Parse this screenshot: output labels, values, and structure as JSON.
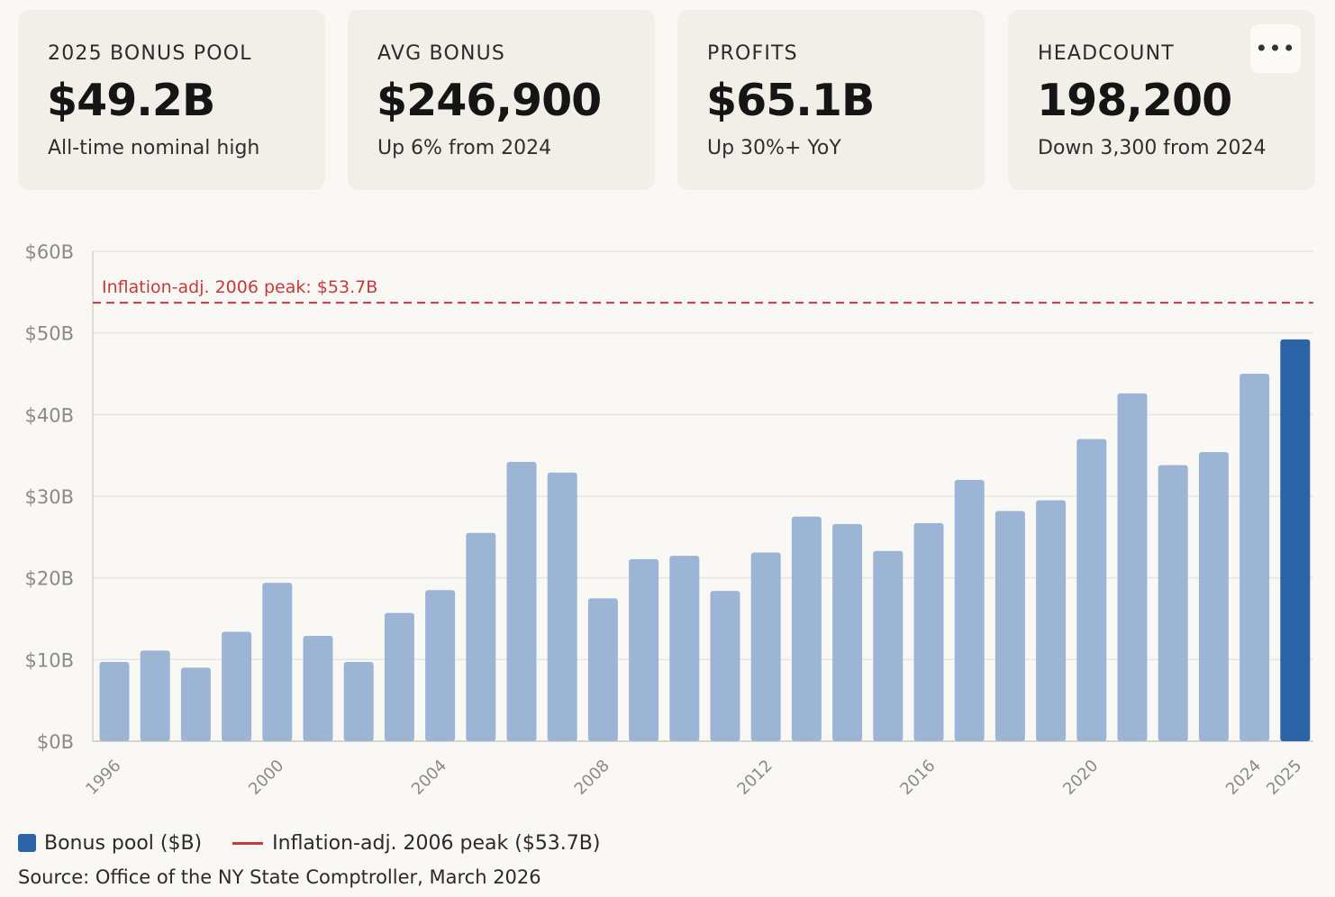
{
  "cards": [
    {
      "label": "2025 BONUS POOL",
      "value": "$49.2B",
      "sub": "All-time nominal high"
    },
    {
      "label": "AVG BONUS",
      "value": "$246,900",
      "sub": "Up 6% from 2024"
    },
    {
      "label": "PROFITS",
      "value": "$65.1B",
      "sub": "Up 30%+ YoY"
    },
    {
      "label": "HEADCOUNT",
      "value": "198,200",
      "sub": "Down 3,300 from 2024"
    }
  ],
  "more_button": {
    "label": "•••"
  },
  "chart_data": {
    "type": "bar",
    "title": "",
    "xlabel": "",
    "ylabel": "",
    "categories": [
      "1996",
      "1997",
      "1998",
      "1999",
      "2000",
      "2001",
      "2002",
      "2003",
      "2004",
      "2005",
      "2006",
      "2007",
      "2008",
      "2009",
      "2010",
      "2011",
      "2012",
      "2013",
      "2014",
      "2015",
      "2016",
      "2017",
      "2018",
      "2019",
      "2020",
      "2021",
      "2022",
      "2023",
      "2024",
      "2025"
    ],
    "x_tick_labels": [
      "1996",
      "2000",
      "2004",
      "2008",
      "2012",
      "2016",
      "2020",
      "2024",
      "2025"
    ],
    "series": [
      {
        "name": "Bonus pool ($B)",
        "values": [
          9.7,
          11.1,
          9.0,
          13.4,
          19.4,
          12.9,
          9.7,
          15.7,
          18.5,
          25.5,
          34.2,
          32.9,
          17.5,
          22.3,
          22.7,
          18.4,
          23.1,
          27.5,
          26.6,
          23.3,
          26.7,
          32.0,
          28.2,
          29.5,
          37.0,
          42.6,
          33.8,
          35.4,
          45.0,
          49.2
        ],
        "color": "#9db5d5",
        "highlight_color": "#2a63a6",
        "highlight_index": 29
      }
    ],
    "ylim": [
      0,
      60
    ],
    "yticks": [
      0,
      10,
      20,
      30,
      40,
      50,
      60
    ],
    "ytick_labels": [
      "$0B",
      "$10B",
      "$20B",
      "$30B",
      "$40B",
      "$50B",
      "$60B"
    ],
    "reference_line": {
      "value": 53.7,
      "label": "Inflation-adj. 2006 peak: $53.7B",
      "color": "#c9393b"
    },
    "grid": true
  },
  "legend": {
    "bar_label": "Bonus pool ($B)",
    "line_label": "Inflation-adj. 2006 peak ($53.7B)"
  },
  "source": "Source: Office of the NY State Comptroller, March 2026"
}
